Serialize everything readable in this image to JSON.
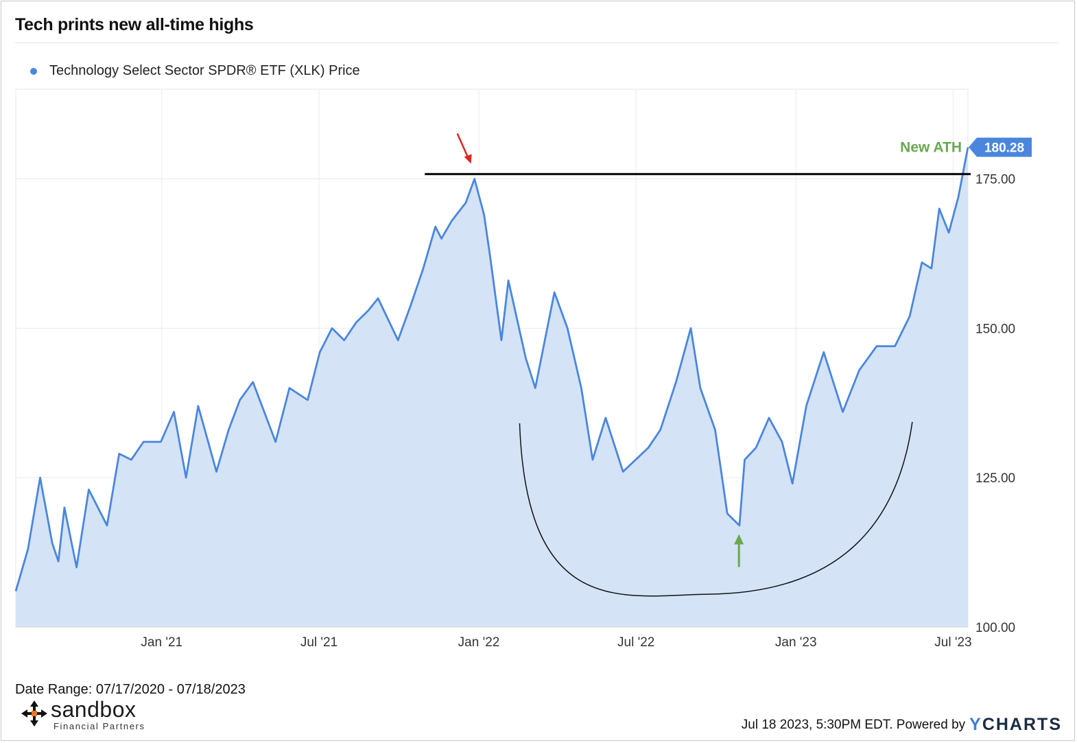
{
  "header": {
    "title": "Tech prints new all-time highs"
  },
  "legend": {
    "label": "Technology Select Sector SPDR® ETF (XLK) Price",
    "color": "#4a86dd"
  },
  "footer": {
    "date_range": "Date Range: 07/17/2020 - 07/18/2023",
    "timestamp": "Jul 18 2023, 5:30PM EDT. Powered by",
    "brand_y": "Y",
    "brand_rest": "CHARTS",
    "logo_name": "sandbox",
    "logo_sub": "Financial Partners"
  },
  "chart_data": {
    "type": "area",
    "title": "Tech prints new all-time highs",
    "series": [
      {
        "name": "Technology Select Sector SPDR® ETF (XLK) Price",
        "x": [
          "2020-07-17",
          "2020-07-31",
          "2020-08-14",
          "2020-08-28",
          "2020-09-04",
          "2020-09-11",
          "2020-09-25",
          "2020-10-09",
          "2020-10-30",
          "2020-11-13",
          "2020-11-27",
          "2020-12-11",
          "2020-12-31",
          "2021-01-15",
          "2021-01-29",
          "2021-02-12",
          "2021-03-05",
          "2021-03-19",
          "2021-04-01",
          "2021-04-16",
          "2021-05-12",
          "2021-05-28",
          "2021-06-18",
          "2021-07-02",
          "2021-07-16",
          "2021-07-30",
          "2021-08-13",
          "2021-08-27",
          "2021-09-07",
          "2021-09-30",
          "2021-10-15",
          "2021-10-29",
          "2021-11-12",
          "2021-11-19",
          "2021-12-01",
          "2021-12-17",
          "2021-12-27",
          "2022-01-07",
          "2022-01-14",
          "2022-01-27",
          "2022-02-04",
          "2022-02-24",
          "2022-03-07",
          "2022-03-29",
          "2022-04-13",
          "2022-04-29",
          "2022-05-12",
          "2022-05-27",
          "2022-06-16",
          "2022-07-15",
          "2022-07-29",
          "2022-08-16",
          "2022-09-02",
          "2022-09-13",
          "2022-09-30",
          "2022-10-14",
          "2022-10-28",
          "2022-11-03",
          "2022-11-16",
          "2022-12-01",
          "2022-12-16",
          "2022-12-28",
          "2023-01-13",
          "2023-02-02",
          "2023-02-24",
          "2023-03-15",
          "2023-04-04",
          "2023-04-25",
          "2023-05-12",
          "2023-05-26",
          "2023-06-06",
          "2023-06-15",
          "2023-06-26",
          "2023-07-07",
          "2023-07-18"
        ],
        "y": [
          106,
          113,
          125,
          114,
          111,
          120,
          110,
          123,
          117,
          129,
          128,
          131,
          131,
          136,
          125,
          137,
          126,
          133,
          138,
          141,
          131,
          140,
          138,
          146,
          150,
          148,
          151,
          153,
          155,
          148,
          154,
          160,
          167,
          165,
          168,
          171,
          175,
          169,
          162,
          148,
          158,
          145,
          140,
          156,
          150,
          140,
          128,
          135,
          126,
          130,
          133,
          141,
          150,
          140,
          133,
          119,
          117,
          128,
          130,
          135,
          131,
          124,
          137,
          146,
          136,
          143,
          147,
          147,
          152,
          161,
          160,
          170,
          166,
          172,
          180.28
        ]
      }
    ],
    "ylim": [
      100,
      190
    ],
    "yticks": [
      100,
      125,
      150,
      175
    ],
    "ytick_labels": [
      "100.00",
      "125.00",
      "150.00",
      "175.00"
    ],
    "xtick_dates": [
      "2021-01-01",
      "2021-07-01",
      "2022-01-01",
      "2022-07-01",
      "2023-01-01",
      "2023-07-01"
    ],
    "xtick_labels": [
      "Jan '21",
      "Jul '21",
      "Jan '22",
      "Jul '22",
      "Jan '23",
      "Jul '23"
    ],
    "x_range": [
      "2020-07-17",
      "2023-07-18"
    ],
    "last_value_label": "180.28",
    "grid": true,
    "legend_position": "top-left",
    "colors": {
      "line": "#4a86dd",
      "fill": "#d4e3f6",
      "label_bg": "#4a86dd"
    },
    "annotations": {
      "ath_text": "New ATH",
      "ath_color": "#6aa84f",
      "resistance_value": 175.8,
      "resistance_from": "2021-10-15",
      "resistance_to": "2023-07-18",
      "peak_date": "2021-12-27",
      "peak_arrow_color": "#e02424",
      "trough_date": "2022-10-14",
      "trough_arrow_color": "#6aa84f",
      "cup_from": "2022-02-17",
      "cup_bottom_date": "2022-09-22",
      "cup_bottom_value": 105.5,
      "cup_to": "2023-05-15"
    }
  }
}
